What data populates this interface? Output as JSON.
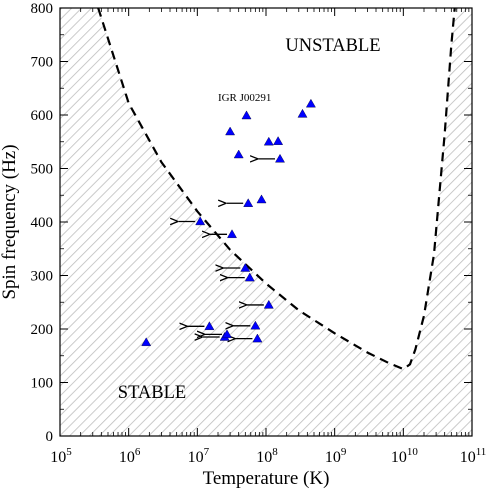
{
  "chart_data": {
    "type": "scatter",
    "title": "",
    "xlabel": "Temperature (K)",
    "ylabel": "Spin frequency (Hz)",
    "x_scale": "log",
    "xlim": [
      100000,
      100000000000
    ],
    "ylim": [
      0,
      800
    ],
    "grid": false,
    "x_ticks": [
      100000,
      1000000,
      10000000,
      100000000,
      1000000000,
      10000000000,
      100000000000
    ],
    "x_tick_labels": [
      {
        "base": "10",
        "exp": "5"
      },
      {
        "base": "10",
        "exp": "6"
      },
      {
        "base": "10",
        "exp": "7"
      },
      {
        "base": "10",
        "exp": "8"
      },
      {
        "base": "10",
        "exp": "9"
      },
      {
        "base": "10",
        "exp": "10"
      },
      {
        "base": "10",
        "exp": "11"
      }
    ],
    "y_ticks": [
      0,
      100,
      200,
      300,
      400,
      500,
      600,
      700,
      800
    ],
    "y_tick_labels": [
      "0",
      "100",
      "200",
      "300",
      "400",
      "500",
      "600",
      "700",
      "800"
    ],
    "region_labels": {
      "unstable": "UNSTABLE",
      "stable": "STABLE"
    },
    "annotations": [
      {
        "text": "IGR J00291",
        "x": 49000000,
        "y": 626
      }
    ],
    "points_color": "#0000ff",
    "instability_curve": {
      "style": "dashed",
      "points": [
        {
          "x": 360000,
          "y": 800
        },
        {
          "x": 1000000,
          "y": 622
        },
        {
          "x": 3000000,
          "y": 512
        },
        {
          "x": 10000000,
          "y": 420
        },
        {
          "x": 30000000,
          "y": 348
        },
        {
          "x": 100000000,
          "y": 285
        },
        {
          "x": 300000000,
          "y": 235
        },
        {
          "x": 1000000000,
          "y": 192
        },
        {
          "x": 3000000000,
          "y": 156
        },
        {
          "x": 6000000000,
          "y": 137
        },
        {
          "x": 10000000000,
          "y": 125
        },
        {
          "x": 12500000000,
          "y": 134
        },
        {
          "x": 15000000000,
          "y": 162
        },
        {
          "x": 20000000000,
          "y": 225
        },
        {
          "x": 28000000000,
          "y": 340
        },
        {
          "x": 40000000000,
          "y": 565
        },
        {
          "x": 50000000000,
          "y": 730
        },
        {
          "x": 56000000000,
          "y": 800
        }
      ]
    },
    "series": [
      {
        "points": [
          {
            "x": 1800000,
            "y": 175,
            "upper_limit": false
          },
          {
            "x": 11000000,
            "y": 401,
            "upper_limit": true
          },
          {
            "x": 15000000,
            "y": 205,
            "upper_limit": true
          },
          {
            "x": 25000000,
            "y": 185,
            "upper_limit": true
          },
          {
            "x": 27000000,
            "y": 190,
            "upper_limit": true
          },
          {
            "x": 30000000,
            "y": 569,
            "upper_limit": false
          },
          {
            "x": 32000000,
            "y": 377,
            "upper_limit": true
          },
          {
            "x": 40000000,
            "y": 526,
            "upper_limit": false
          },
          {
            "x": 50000000,
            "y": 314,
            "upper_limit": true
          },
          {
            "x": 52000000,
            "y": 599,
            "upper_limit": false
          },
          {
            "x": 55000000,
            "y": 435,
            "upper_limit": true
          },
          {
            "x": 58000000,
            "y": 296,
            "upper_limit": true
          },
          {
            "x": 70000000,
            "y": 206,
            "upper_limit": true
          },
          {
            "x": 75000000,
            "y": 182,
            "upper_limit": true
          },
          {
            "x": 86000000,
            "y": 442,
            "upper_limit": false
          },
          {
            "x": 110000000,
            "y": 550,
            "upper_limit": false
          },
          {
            "x": 110000000,
            "y": 245,
            "upper_limit": true
          },
          {
            "x": 150000000,
            "y": 551,
            "upper_limit": false
          },
          {
            "x": 160000000,
            "y": 518,
            "upper_limit": true
          },
          {
            "x": 340000000,
            "y": 602,
            "upper_limit": false
          },
          {
            "x": 450000000,
            "y": 621,
            "upper_limit": false
          }
        ]
      }
    ]
  }
}
